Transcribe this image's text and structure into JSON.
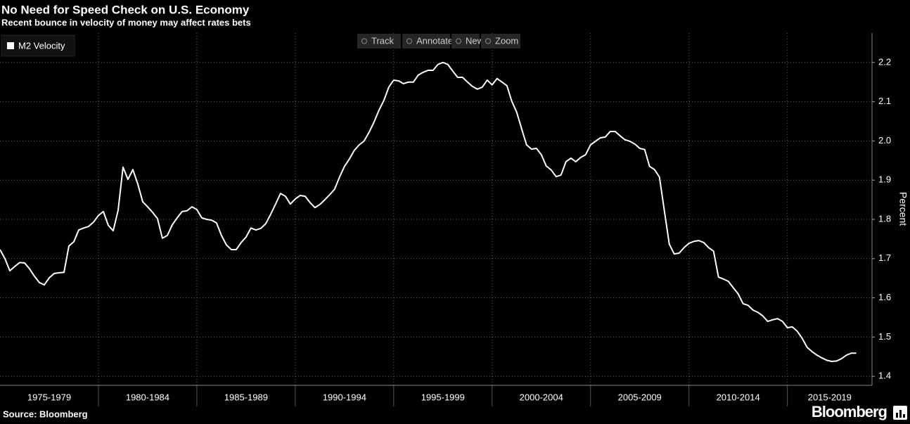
{
  "chart_data": {
    "type": "line",
    "title": "No Need for Speed Check on U.S. Economy",
    "subtitle": "Recent bounce in velocity of money may affect rates bets",
    "y_label": "Percent",
    "source": "Source: Bloomberg",
    "brand": "Bloomberg",
    "legend": "top-left",
    "grid": true,
    "xlim": [
      1975,
      2019.3
    ],
    "xticks": [
      {
        "value": 1975,
        "label": "1975-1979"
      },
      {
        "value": 1980,
        "label": "1980-1984"
      },
      {
        "value": 1985,
        "label": "1985-1989"
      },
      {
        "value": 1990,
        "label": "1990-1994"
      },
      {
        "value": 1995,
        "label": "1995-1999"
      },
      {
        "value": 2000,
        "label": "2000-2004"
      },
      {
        "value": 2005,
        "label": "2005-2009"
      },
      {
        "value": 2010,
        "label": "2010-2014"
      },
      {
        "value": 2015,
        "label": "2015-2019"
      }
    ],
    "ylim": [
      1.377,
      2.275
    ],
    "yticks": [
      1.4,
      1.5,
      1.6,
      1.7,
      1.8,
      1.9,
      {
        "value": 2,
        "label": "2.0"
      },
      2.1,
      2.2
    ],
    "series": [
      {
        "name": "M2 Velocity",
        "color": "#ffffff",
        "x": [
          1975,
          1975.25,
          1975.5,
          1975.75,
          1976,
          1976.25,
          1976.5,
          1976.75,
          1977,
          1977.25,
          1977.5,
          1977.75,
          1978,
          1978.25,
          1978.5,
          1978.75,
          1979,
          1979.25,
          1979.5,
          1979.75,
          1980,
          1980.25,
          1980.5,
          1980.75,
          1981,
          1981.25,
          1981.5,
          1981.75,
          1982,
          1982.25,
          1982.5,
          1982.75,
          1983,
          1983.25,
          1983.5,
          1983.75,
          1984,
          1984.25,
          1984.5,
          1984.75,
          1985,
          1985.25,
          1985.5,
          1985.75,
          1986,
          1986.25,
          1986.5,
          1986.75,
          1987,
          1987.25,
          1987.5,
          1987.75,
          1988,
          1988.25,
          1988.5,
          1988.75,
          1989,
          1989.25,
          1989.5,
          1989.75,
          1990,
          1990.25,
          1990.5,
          1990.75,
          1991,
          1991.25,
          1991.5,
          1991.75,
          1992,
          1992.25,
          1992.5,
          1992.75,
          1993,
          1993.25,
          1993.5,
          1993.75,
          1994,
          1994.25,
          1994.5,
          1994.75,
          1995,
          1995.25,
          1995.5,
          1995.75,
          1996,
          1996.25,
          1996.5,
          1996.75,
          1997,
          1997.25,
          1997.5,
          1997.75,
          1998,
          1998.25,
          1998.5,
          1998.75,
          1999,
          1999.25,
          1999.5,
          1999.75,
          2000,
          2000.25,
          2000.5,
          2000.75,
          2001,
          2001.25,
          2001.5,
          2001.75,
          2002,
          2002.25,
          2002.5,
          2002.75,
          2003,
          2003.25,
          2003.5,
          2003.75,
          2004,
          2004.25,
          2004.5,
          2004.75,
          2005,
          2005.25,
          2005.5,
          2005.75,
          2006,
          2006.25,
          2006.5,
          2006.75,
          2007,
          2007.25,
          2007.5,
          2007.75,
          2008,
          2008.25,
          2008.5,
          2008.75,
          2009,
          2009.25,
          2009.5,
          2009.75,
          2010,
          2010.25,
          2010.5,
          2010.75,
          2011,
          2011.25,
          2011.5,
          2011.75,
          2012,
          2012.25,
          2012.5,
          2012.75,
          2013,
          2013.25,
          2013.5,
          2013.75,
          2014,
          2014.25,
          2014.5,
          2014.75,
          2015,
          2015.25,
          2015.5,
          2015.75,
          2016,
          2016.25,
          2016.5,
          2016.75,
          2017,
          2017.25,
          2017.5,
          2017.75,
          2018,
          2018.25,
          2018.5
        ],
        "values": [
          1.723,
          1.7,
          1.669,
          1.68,
          1.69,
          1.689,
          1.674,
          1.655,
          1.639,
          1.633,
          1.651,
          1.662,
          1.664,
          1.665,
          1.732,
          1.743,
          1.773,
          1.778,
          1.782,
          1.793,
          1.81,
          1.82,
          1.785,
          1.771,
          1.823,
          1.933,
          1.902,
          1.927,
          1.89,
          1.845,
          1.832,
          1.818,
          1.802,
          1.752,
          1.759,
          1.786,
          1.804,
          1.82,
          1.822,
          1.832,
          1.825,
          1.804,
          1.8,
          1.798,
          1.791,
          1.759,
          1.735,
          1.723,
          1.723,
          1.741,
          1.755,
          1.778,
          1.773,
          1.777,
          1.789,
          1.813,
          1.839,
          1.866,
          1.859,
          1.839,
          1.852,
          1.861,
          1.859,
          1.843,
          1.83,
          1.838,
          1.85,
          1.863,
          1.877,
          1.908,
          1.935,
          1.954,
          1.976,
          1.99,
          2.0,
          2.022,
          2.048,
          2.078,
          2.103,
          2.137,
          2.155,
          2.153,
          2.146,
          2.15,
          2.15,
          2.168,
          2.175,
          2.18,
          2.18,
          2.195,
          2.2,
          2.195,
          2.178,
          2.162,
          2.162,
          2.15,
          2.139,
          2.132,
          2.137,
          2.155,
          2.143,
          2.159,
          2.15,
          2.141,
          2.101,
          2.073,
          2.031,
          1.99,
          1.979,
          1.981,
          1.965,
          1.936,
          1.926,
          1.909,
          1.913,
          1.947,
          1.956,
          1.947,
          1.958,
          1.965,
          1.99,
          1.999,
          2.008,
          2.01,
          2.024,
          2.024,
          2.013,
          2.003,
          1.999,
          1.992,
          1.981,
          1.978,
          1.935,
          1.927,
          1.908,
          1.822,
          1.737,
          1.712,
          1.714,
          1.728,
          1.739,
          1.744,
          1.746,
          1.741,
          1.728,
          1.719,
          1.653,
          1.648,
          1.642,
          1.626,
          1.61,
          1.585,
          1.581,
          1.569,
          1.563,
          1.554,
          1.54,
          1.544,
          1.547,
          1.54,
          1.524,
          1.526,
          1.515,
          1.497,
          1.474,
          1.463,
          1.454,
          1.447,
          1.441,
          1.438,
          1.439,
          1.445,
          1.454,
          1.459,
          1.459
        ]
      }
    ]
  },
  "toolbar": [
    "Track",
    "Annotate",
    "News",
    "Zoom"
  ]
}
